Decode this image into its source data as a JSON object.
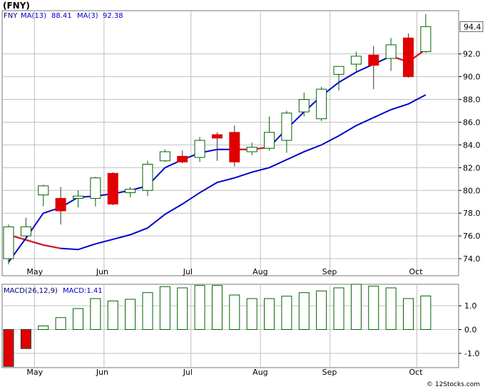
{
  "header": {
    "title": "(FNY)"
  },
  "footer": {
    "credit": "© 12Stocks.com"
  },
  "colors": {
    "up_candle": "#006400",
    "down_candle": "#e00000",
    "ma_fast_up": "#0000cc",
    "ma_fast_down": "#dd1111",
    "ma_slow": "#0000cc",
    "grid": "#c0c0c0",
    "macd_bar": "#006400"
  },
  "chart_data": [
    {
      "type": "candlestick",
      "name": "price",
      "legend": {
        "ticker": "FNY",
        "ma_slow_label": "MA(13)",
        "ma_slow_value": "88.41",
        "ma_fast_label": "MA(3)",
        "ma_fast_value": "92.38"
      },
      "last_price_label": "94.4",
      "x_ticks": [
        {
          "label": "May",
          "index": 1
        },
        {
          "label": "Jun",
          "index": 5
        },
        {
          "label": "Jul",
          "index": 10
        },
        {
          "label": "Aug",
          "index": 14
        },
        {
          "label": "Sep",
          "index": 18
        },
        {
          "label": "Oct",
          "index": 23
        }
      ],
      "y_ticks": [
        "74.0",
        "76.0",
        "78.0",
        "80.0",
        "82.0",
        "84.0",
        "86.0",
        "88.0",
        "90.0",
        "92.0"
      ],
      "ylim": [
        72.5,
        95.8
      ],
      "grid": true,
      "candles": [
        {
          "o": 74.0,
          "h": 77.0,
          "l": 73.5,
          "c": 76.8
        },
        {
          "o": 76.0,
          "h": 77.6,
          "l": 75.8,
          "c": 76.8
        },
        {
          "o": 79.6,
          "h": 80.5,
          "l": 78.6,
          "c": 80.4
        },
        {
          "o": 79.3,
          "h": 80.3,
          "l": 77.0,
          "c": 78.2
        },
        {
          "o": 79.3,
          "h": 80.0,
          "l": 78.5,
          "c": 79.5
        },
        {
          "o": 79.3,
          "h": 81.2,
          "l": 78.6,
          "c": 81.1
        },
        {
          "o": 81.5,
          "h": 81.6,
          "l": 78.7,
          "c": 78.8
        },
        {
          "o": 79.8,
          "h": 80.3,
          "l": 79.4,
          "c": 80.1
        },
        {
          "o": 80.0,
          "h": 82.6,
          "l": 79.5,
          "c": 82.3
        },
        {
          "o": 82.6,
          "h": 83.6,
          "l": 82.5,
          "c": 83.4
        },
        {
          "o": 83.0,
          "h": 83.5,
          "l": 82.4,
          "c": 82.5
        },
        {
          "o": 82.9,
          "h": 84.7,
          "l": 82.5,
          "c": 84.4
        },
        {
          "o": 84.9,
          "h": 85.1,
          "l": 82.6,
          "c": 84.6
        },
        {
          "o": 85.1,
          "h": 85.7,
          "l": 82.1,
          "c": 82.5
        },
        {
          "o": 83.4,
          "h": 84.2,
          "l": 83.1,
          "c": 83.8
        },
        {
          "o": 83.7,
          "h": 86.5,
          "l": 83.5,
          "c": 85.1
        },
        {
          "o": 84.4,
          "h": 87.0,
          "l": 83.3,
          "c": 86.8
        },
        {
          "o": 86.9,
          "h": 88.6,
          "l": 86.5,
          "c": 88.0
        },
        {
          "o": 86.3,
          "h": 89.1,
          "l": 86.1,
          "c": 88.9
        },
        {
          "o": 90.2,
          "h": 90.8,
          "l": 88.8,
          "c": 90.9
        },
        {
          "o": 91.1,
          "h": 92.2,
          "l": 90.3,
          "c": 91.8
        },
        {
          "o": 91.9,
          "h": 92.7,
          "l": 88.9,
          "c": 91.0
        },
        {
          "o": 91.6,
          "h": 93.4,
          "l": 90.5,
          "c": 92.8
        },
        {
          "o": 93.4,
          "h": 93.8,
          "l": 89.9,
          "c": 90.0
        },
        {
          "o": 92.2,
          "h": 95.5,
          "l": 92.1,
          "c": 94.4
        }
      ],
      "ma_fast": [
        73.7,
        75.8,
        78.0,
        78.5,
        79.4,
        79.5,
        79.7,
        80.0,
        80.4,
        82.0,
        82.7,
        83.3,
        83.6,
        83.6,
        83.6,
        83.8,
        85.4,
        86.9,
        88.3,
        89.5,
        90.4,
        91.1,
        91.8,
        91.3,
        92.4
      ],
      "ma_slow": [
        76.1,
        null,
        75.2,
        74.9,
        74.8,
        75.3,
        75.7,
        76.1,
        76.7,
        77.9,
        78.8,
        79.8,
        80.7,
        81.1,
        81.6,
        82.0,
        82.7,
        83.4,
        84.0,
        84.8,
        85.7,
        86.4,
        87.1,
        87.6,
        88.4
      ],
      "ma_fast_down_segments": [
        [
          13,
          15
        ],
        [
          22,
          24
        ]
      ]
    },
    {
      "type": "bar",
      "name": "macd",
      "legend": {
        "label": "MACD(26,12,9)",
        "value_label": "MACD:1.41"
      },
      "y_ticks": [
        "1.0",
        "0.0",
        "-1.0"
      ],
      "ylim": [
        -1.6,
        1.9
      ],
      "values": [
        -1.55,
        -0.8,
        0.15,
        0.5,
        0.88,
        1.3,
        1.2,
        1.27,
        1.55,
        1.8,
        1.75,
        1.85,
        1.85,
        1.45,
        1.3,
        1.3,
        1.4,
        1.55,
        1.62,
        1.75,
        1.9,
        1.82,
        1.75,
        1.3,
        1.41
      ]
    }
  ]
}
